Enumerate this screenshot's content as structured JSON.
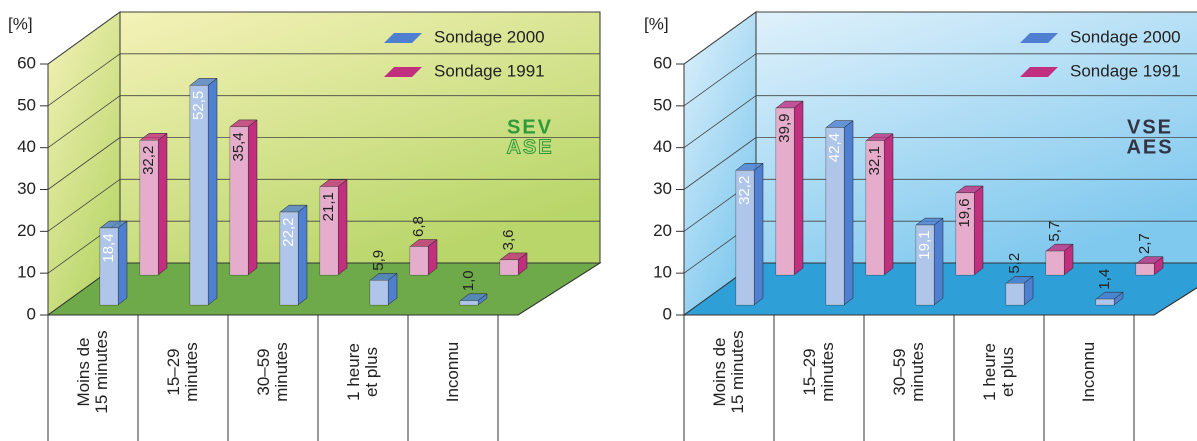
{
  "chart_data": [
    {
      "type": "bar3d",
      "ylabel": "[%]",
      "categories": [
        "Moins de\n15 minutes",
        "15–29\nminutes",
        "30–59\nminutes",
        "1 heure\net plus",
        "Inconnu"
      ],
      "series": [
        {
          "name": "Sondage 2000",
          "color": "#4f7fd0",
          "values": [
            18.4,
            52.5,
            22.2,
            5.9,
            1.0
          ],
          "value_labels": [
            "18,4",
            "52,5",
            "22,2",
            "5,9",
            "1,0"
          ]
        },
        {
          "name": "Sondage 1991",
          "color": "#c0307f",
          "values": [
            32.2,
            35.4,
            21.1,
            6.8,
            3.6
          ],
          "value_labels": [
            "32,2",
            "35,4",
            "21,1",
            "6,8",
            "3,6"
          ]
        }
      ],
      "ylim": [
        0,
        60
      ],
      "yticks": [
        0,
        10,
        20,
        30,
        40,
        50,
        60
      ],
      "grid": true,
      "wall_colors": [
        "#f4f2b8",
        "#b9d66a",
        "#6faa4a"
      ],
      "logo": {
        "line1": "SEV",
        "line2": "ASE",
        "color": "#2e9a3a"
      }
    },
    {
      "type": "bar3d",
      "ylabel": "[%]",
      "categories": [
        "Moins de\n15 minutes",
        "15–29\nminutes",
        "30–59\nminutes",
        "1 heure\net plus",
        "Inconnu"
      ],
      "series": [
        {
          "name": "Sondage 2000",
          "color": "#4f7fd0",
          "values": [
            32.2,
            42.4,
            19.1,
            5.2,
            1.4
          ],
          "value_labels": [
            "32,2",
            "42,4",
            "19,1",
            "5,2",
            "1,4"
          ]
        },
        {
          "name": "Sondage 1991",
          "color": "#c0307f",
          "values": [
            39.9,
            32.1,
            19.6,
            5.7,
            2.7
          ],
          "value_labels": [
            "39,9",
            "32,1",
            "19,6",
            "5,7",
            "2,7"
          ]
        }
      ],
      "ylim": [
        0,
        60
      ],
      "yticks": [
        0,
        10,
        20,
        30,
        40,
        50,
        60
      ],
      "grid": true,
      "wall_colors": [
        "#dff1fb",
        "#7fc8ee",
        "#2f9fd8"
      ],
      "logo": {
        "line1": "VSE",
        "line2": "AES",
        "color": "#333344"
      }
    }
  ]
}
